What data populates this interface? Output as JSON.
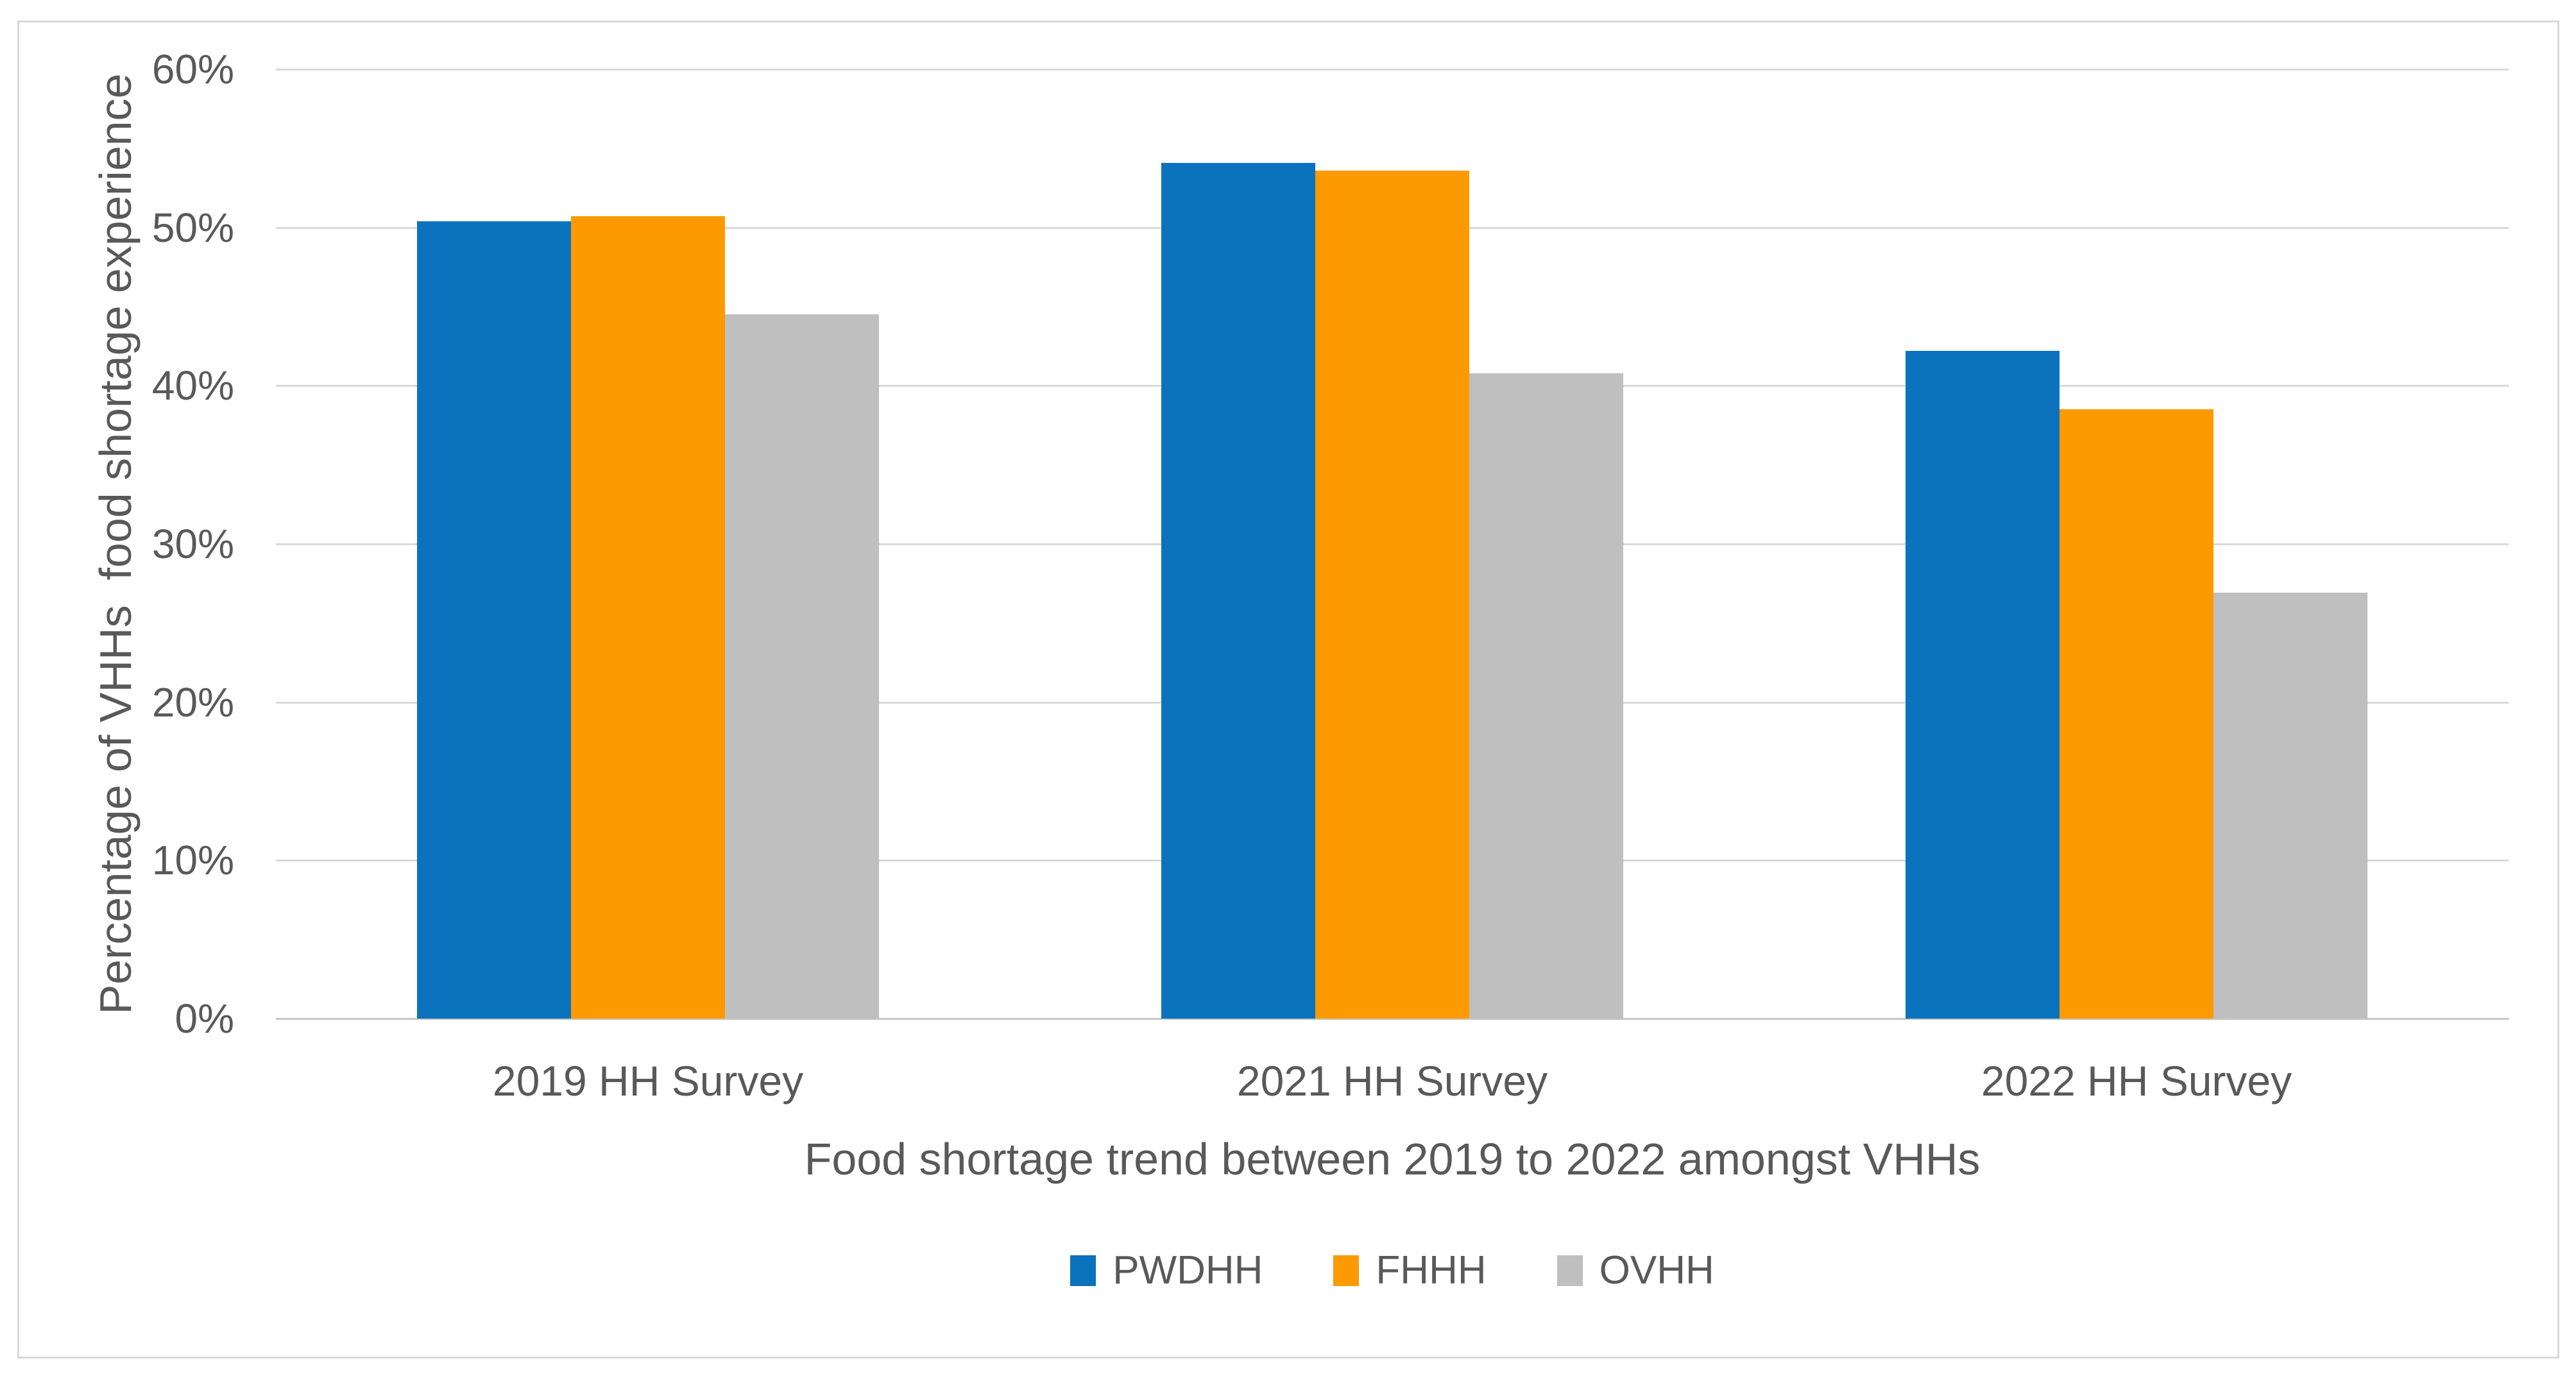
{
  "chart_data": {
    "type": "bar",
    "title": "",
    "xlabel": "Food shortage trend between 2019 to 2022 amongst VHHs",
    "ylabel": "Percentage of VHHs  food shortage experience",
    "categories": [
      "2019 HH Survey",
      "2021 HH Survey",
      "2022 HH Survey"
    ],
    "series": [
      {
        "name": "PWDHH",
        "color": "#0b72be",
        "values": [
          50.4,
          54.1,
          42.2
        ]
      },
      {
        "name": "FHHH",
        "color": "#fd9a01",
        "values": [
          50.7,
          53.6,
          38.5
        ]
      },
      {
        "name": "OVHH",
        "color": "#bfbfbf",
        "values": [
          44.5,
          40.8,
          26.9
        ]
      }
    ],
    "ylim": [
      0,
      60
    ],
    "ytick_step": 10,
    "ytick_suffix": "%",
    "ytick_labels": [
      "0%",
      "10%",
      "20%",
      "30%",
      "40%",
      "50%",
      "60%"
    ],
    "grid": "horizontal",
    "legend_position": "bottom",
    "colors": {
      "axis_text": "#595959",
      "gridline": "#d9d9d9",
      "frame_border": "#d9d9d9",
      "background": "#ffffff"
    }
  }
}
